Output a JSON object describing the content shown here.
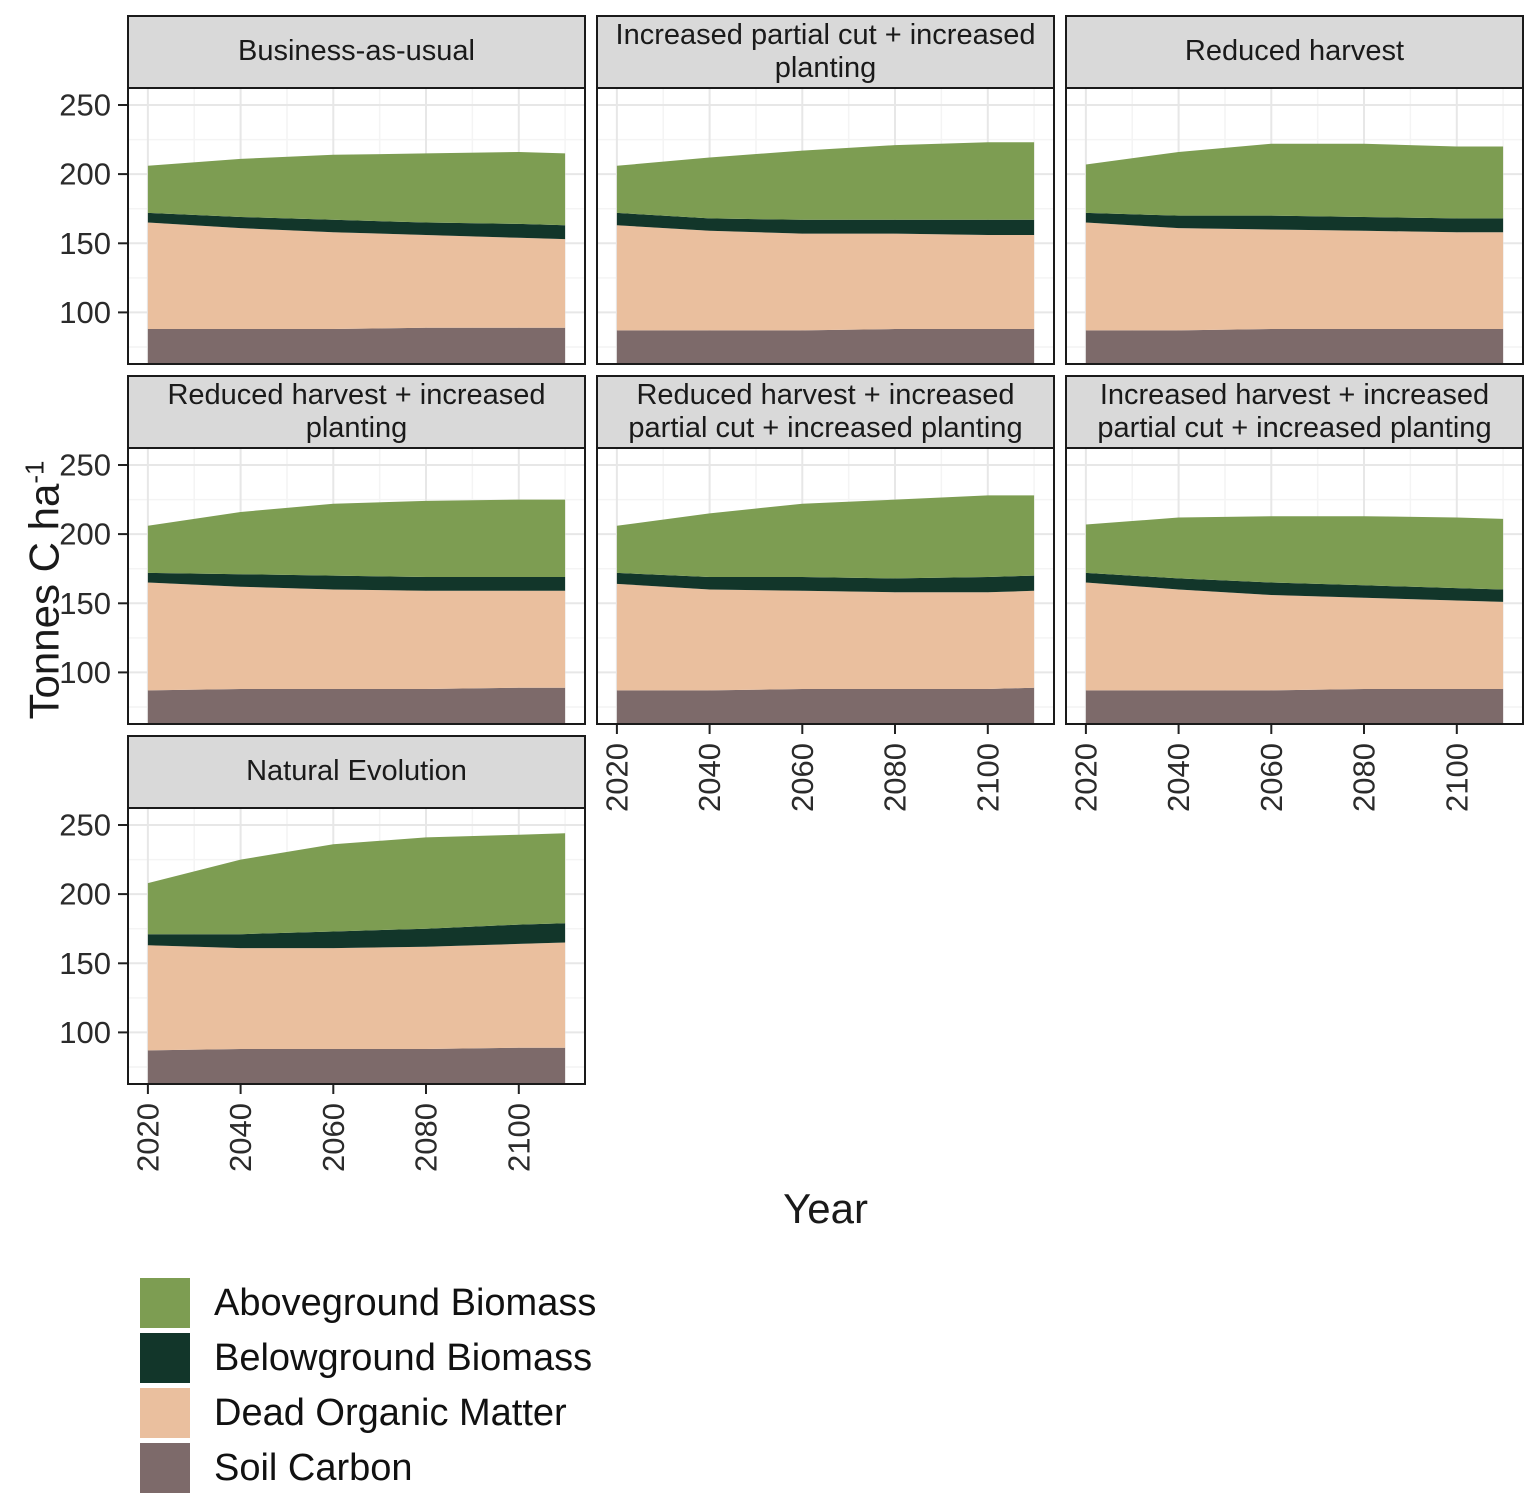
{
  "figure": {
    "y_axis_title_base": "Tonnes C ha",
    "y_axis_title_sup": "-1",
    "x_axis_title": "Year"
  },
  "colors": {
    "Aboveground Biomass": "#7d9d52",
    "Belowground Biomass": "#12362a",
    "Dead Organic Matter": "#eabf9e",
    "Soil Carbon": "#7d6a6a"
  },
  "legend": {
    "items": [
      {
        "label": "Aboveground Biomass"
      },
      {
        "label": "Belowground Biomass"
      },
      {
        "label": "Dead Organic Matter"
      },
      {
        "label": "Soil Carbon"
      }
    ]
  },
  "chart_data": {
    "type": "area",
    "stacked": true,
    "title": "",
    "xlabel": "Year",
    "ylabel": "Tonnes C ha^-1",
    "x": [
      2020,
      2040,
      2060,
      2080,
      2100,
      2110
    ],
    "x_ticks": [
      2020,
      2040,
      2060,
      2080,
      2100
    ],
    "x_minor": [
      2030,
      2050,
      2070,
      2090,
      2110
    ],
    "y_ticks": [
      100,
      150,
      200,
      250
    ],
    "y_minor": [
      75,
      125,
      175,
      225
    ],
    "xlim": [
      2015.5,
      2114.5
    ],
    "ylim": [
      62,
      263
    ],
    "legend_position": "bottom-left",
    "grid": true,
    "series_order": [
      "Soil Carbon",
      "Dead Organic Matter",
      "Belowground Biomass",
      "Aboveground Biomass"
    ],
    "panels": [
      {
        "title": "Business-as-usual",
        "row": 1,
        "col": 1,
        "show_y": true,
        "show_x": false,
        "series": {
          "Soil Carbon": [
            88,
            88,
            88,
            89,
            89,
            89
          ],
          "Dead Organic Matter": [
            77,
            73,
            70,
            67,
            65,
            64
          ],
          "Belowground Biomass": [
            7,
            8,
            9,
            9,
            10,
            10
          ],
          "Aboveground Biomass": [
            34,
            42,
            47,
            50,
            52,
            52
          ]
        }
      },
      {
        "title": "Increased partial cut + increased planting",
        "row": 1,
        "col": 2,
        "show_y": false,
        "show_x": false,
        "series": {
          "Soil Carbon": [
            87,
            87,
            87,
            88,
            88,
            88
          ],
          "Dead Organic Matter": [
            76,
            72,
            70,
            69,
            68,
            68
          ],
          "Belowground Biomass": [
            9,
            9,
            10,
            10,
            11,
            11
          ],
          "Aboveground Biomass": [
            34,
            44,
            50,
            54,
            56,
            56
          ]
        }
      },
      {
        "title": "Reduced harvest",
        "row": 1,
        "col": 3,
        "show_y": false,
        "show_x": false,
        "series": {
          "Soil Carbon": [
            87,
            87,
            88,
            88,
            88,
            88
          ],
          "Dead Organic Matter": [
            78,
            74,
            72,
            71,
            70,
            70
          ],
          "Belowground Biomass": [
            7,
            9,
            10,
            10,
            10,
            10
          ],
          "Aboveground Biomass": [
            35,
            46,
            52,
            53,
            52,
            52
          ]
        }
      },
      {
        "title": "Reduced harvest + increased planting",
        "row": 2,
        "col": 1,
        "show_y": true,
        "show_x": false,
        "series": {
          "Soil Carbon": [
            87,
            88,
            88,
            88,
            89,
            89
          ],
          "Dead Organic Matter": [
            78,
            74,
            72,
            71,
            70,
            70
          ],
          "Belowground Biomass": [
            7,
            9,
            10,
            10,
            10,
            10
          ],
          "Aboveground Biomass": [
            34,
            45,
            52,
            55,
            56,
            56
          ]
        }
      },
      {
        "title": "Reduced harvest + increased partial cut + increased planting",
        "row": 2,
        "col": 2,
        "show_y": false,
        "show_x": true,
        "series": {
          "Soil Carbon": [
            87,
            87,
            88,
            88,
            88,
            89
          ],
          "Dead Organic Matter": [
            77,
            73,
            71,
            70,
            70,
            70
          ],
          "Belowground Biomass": [
            8,
            9,
            10,
            10,
            11,
            11
          ],
          "Aboveground Biomass": [
            34,
            46,
            53,
            57,
            59,
            58
          ]
        }
      },
      {
        "title": "Increased harvest + increased partial cut + increased planting",
        "row": 2,
        "col": 3,
        "show_y": false,
        "show_x": true,
        "series": {
          "Soil Carbon": [
            87,
            87,
            87,
            88,
            88,
            88
          ],
          "Dead Organic Matter": [
            78,
            73,
            69,
            66,
            64,
            63
          ],
          "Belowground Biomass": [
            7,
            8,
            9,
            9,
            9,
            9
          ],
          "Aboveground Biomass": [
            35,
            44,
            48,
            50,
            51,
            51
          ]
        }
      },
      {
        "title": "Natural Evolution",
        "row": 3,
        "col": 1,
        "show_y": true,
        "show_x": true,
        "series": {
          "Soil Carbon": [
            87,
            88,
            88,
            88,
            89,
            89
          ],
          "Dead Organic Matter": [
            76,
            73,
            73,
            74,
            75,
            76
          ],
          "Belowground Biomass": [
            8,
            10,
            12,
            13,
            14,
            14
          ],
          "Aboveground Biomass": [
            37,
            54,
            63,
            66,
            65,
            65
          ]
        }
      }
    ]
  }
}
